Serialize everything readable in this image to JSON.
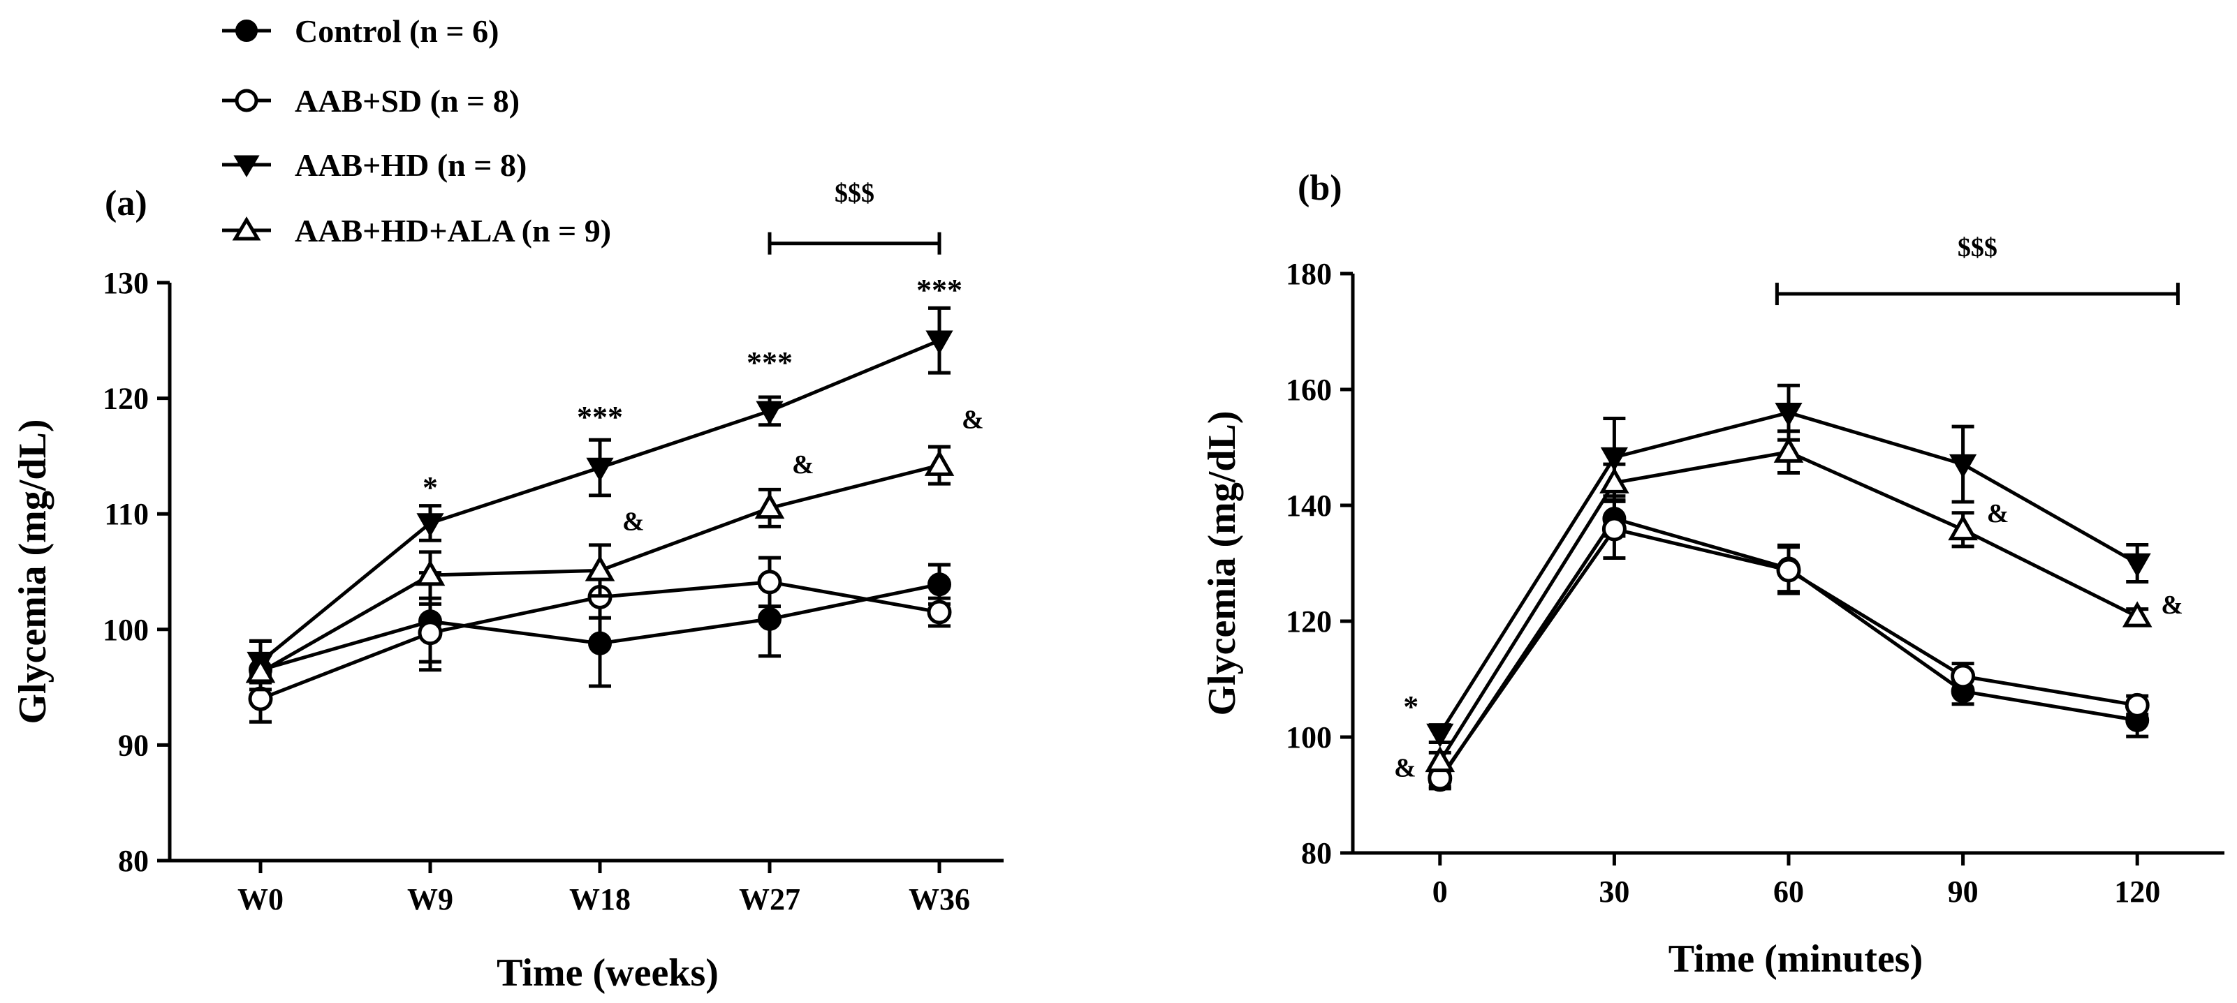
{
  "legend": [
    {
      "label": "Control (n = 6)",
      "marker": "circle-filled"
    },
    {
      "label": "AAB+SD (n = 8)",
      "marker": "circle-open"
    },
    {
      "label": "AAB+HD (n = 8)",
      "marker": "triangle-down-filled"
    },
    {
      "label": "AAB+HD+ALA (n = 9)",
      "marker": "triangle-up-open"
    }
  ],
  "chart_data": [
    {
      "type": "line",
      "panel_label": "(a)",
      "xlabel": "Time (weeks)",
      "ylabel": "Glycemia (mg/dL)",
      "categories": [
        "W0",
        "W9",
        "W18",
        "W27",
        "W36"
      ],
      "ylim": [
        80,
        130
      ],
      "yticks": [
        80,
        90,
        100,
        110,
        120,
        130
      ],
      "series": [
        {
          "name": "Control (n = 6)",
          "marker": "circle-filled",
          "values": [
            96.5,
            100.7,
            98.8,
            100.9,
            103.9
          ],
          "errors": [
            2.5,
            4.2,
            3.7,
            3.2,
            1.7
          ]
        },
        {
          "name": "AAB+SD (n = 8)",
          "marker": "circle-open",
          "values": [
            94.0,
            99.7,
            102.8,
            104.1,
            101.5
          ],
          "errors": [
            2.0,
            2.5,
            1.8,
            2.1,
            1.2
          ]
        },
        {
          "name": "AAB+HD (n = 8)",
          "marker": "triangle-down-filled",
          "values": [
            97.2,
            109.2,
            114.0,
            118.9,
            125.0
          ],
          "errors": [
            1.8,
            1.5,
            2.4,
            1.2,
            2.8
          ]
        },
        {
          "name": "AAB+HD+ALA (n = 9)",
          "marker": "triangle-up-open",
          "values": [
            96.3,
            104.7,
            105.1,
            110.5,
            114.2
          ],
          "errors": [
            1.5,
            2.0,
            2.2,
            1.6,
            1.6
          ]
        }
      ],
      "annotations": [
        {
          "text": "*",
          "category": "W9",
          "y": 111.4,
          "offset": "center"
        },
        {
          "text": "***",
          "category": "W18",
          "y": 117.5,
          "offset": "center"
        },
        {
          "text": "***",
          "category": "W27",
          "y": 122.2,
          "offset": "center"
        },
        {
          "text": "***",
          "category": "W36",
          "y": 128.5,
          "offset": "center"
        },
        {
          "text": "&",
          "category": "W18",
          "y": 108.6,
          "offset": "right"
        },
        {
          "text": "&",
          "category": "W27",
          "y": 113.5,
          "offset": "right"
        },
        {
          "text": "&",
          "category": "W36",
          "y": 117.4,
          "offset": "right"
        }
      ],
      "bracket": {
        "label": "$$$",
        "from_category": "W27",
        "to_category": "W36",
        "y": 133.4,
        "label_y": 137
      }
    },
    {
      "type": "line",
      "panel_label": "(b)",
      "xlabel": "Time (minutes)",
      "ylabel": "Glycemia (mg/dL)",
      "x": [
        0,
        30,
        60,
        90,
        120
      ],
      "xticks": [
        0,
        30,
        60,
        90,
        120
      ],
      "xlim": [
        -15,
        135
      ],
      "ylim": [
        80,
        180
      ],
      "yticks": [
        80,
        100,
        120,
        140,
        160,
        180
      ],
      "series": [
        {
          "name": "Control (n = 6)",
          "marker": "circle-filled",
          "values": [
            92.6,
            137.7,
            129.1,
            107.9,
            102.9
          ],
          "errors": [
            1.5,
            3.0,
            4.0,
            2.2,
            2.8
          ]
        },
        {
          "name": "AAB+SD (n = 8)",
          "marker": "circle-open",
          "values": [
            92.9,
            135.9,
            128.8,
            110.5,
            105.5
          ],
          "errors": [
            1.5,
            5.0,
            4.0,
            2.2,
            1.6
          ]
        },
        {
          "name": "AAB+HD (n = 8)",
          "marker": "triangle-down-filled",
          "values": [
            100.6,
            148.3,
            156.0,
            147.1,
            130.0
          ],
          "errors": [
            1.5,
            6.7,
            4.7,
            6.5,
            3.2
          ]
        },
        {
          "name": "AAB+HD+ALA (n = 9)",
          "marker": "triangle-up-open",
          "values": [
            95.8,
            143.9,
            149.2,
            135.8,
            120.8
          ],
          "errors": [
            1.5,
            3.2,
            3.6,
            2.9,
            1.3
          ]
        }
      ],
      "annotations": [
        {
          "text": "*",
          "x": -5,
          "y": 103.5
        },
        {
          "text": "&",
          "x": -6,
          "y": 93.2
        },
        {
          "text": "&",
          "x": 96,
          "y": 137.1
        },
        {
          "text": "&",
          "x": 126,
          "y": 121.3
        }
      ],
      "bracket": {
        "label": "$$$",
        "from_x": 58,
        "to_x": 127,
        "y": 176.5,
        "label_y": 183
      }
    }
  ]
}
